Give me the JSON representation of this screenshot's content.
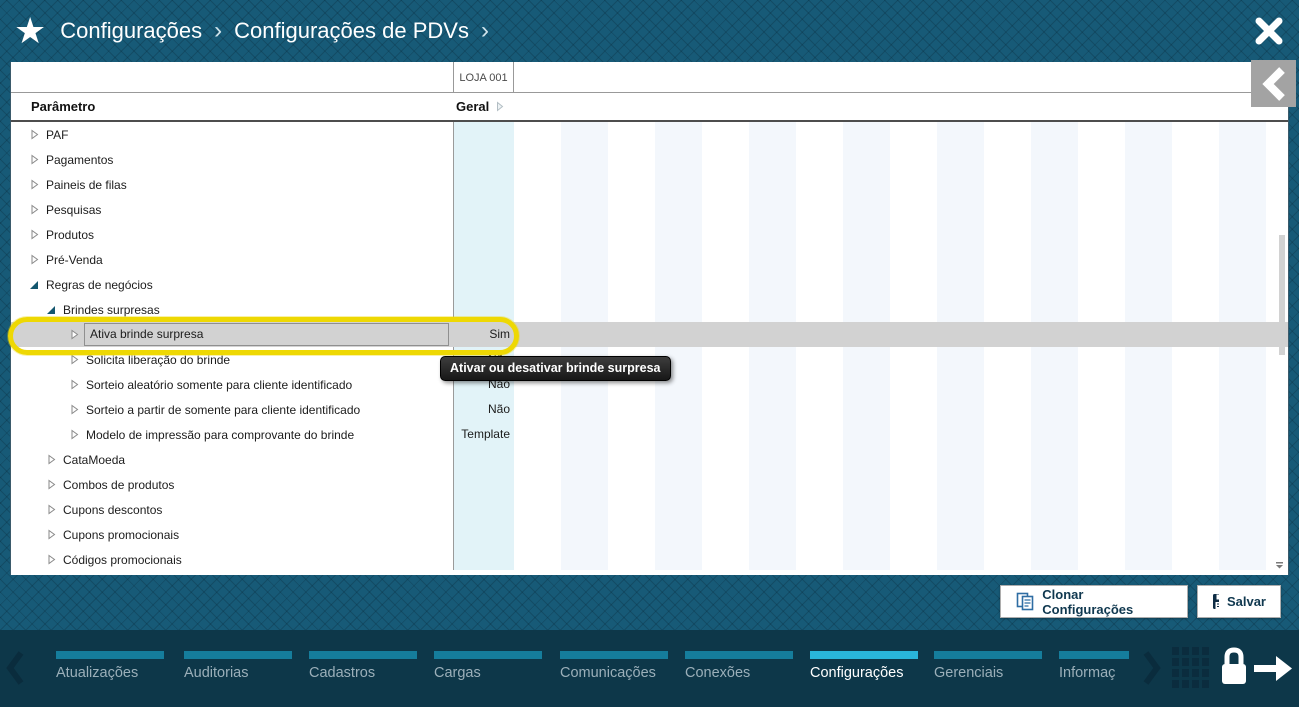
{
  "header": {
    "star_icon": "star",
    "breadcrumb": [
      {
        "label": "Configurações"
      },
      {
        "label": "Configurações de PDVs"
      }
    ],
    "separator": "›",
    "close_icon": "close"
  },
  "table": {
    "store_header": "LOJA 001",
    "param_header": "Parâmetro",
    "group_header": "Geral",
    "tree": [
      {
        "label": "PAF",
        "level": 0,
        "state": "collapsed"
      },
      {
        "label": "Pagamentos",
        "level": 0,
        "state": "collapsed"
      },
      {
        "label": "Paineis de filas",
        "level": 0,
        "state": "collapsed"
      },
      {
        "label": "Pesquisas",
        "level": 0,
        "state": "collapsed"
      },
      {
        "label": "Produtos",
        "level": 0,
        "state": "collapsed"
      },
      {
        "label": "Pré-Venda",
        "level": 0,
        "state": "collapsed"
      },
      {
        "label": "Regras de negócios",
        "level": 0,
        "state": "expanded"
      },
      {
        "label": "Brindes surpresas",
        "level": 1,
        "state": "expanded"
      },
      {
        "label": "Ativa brinde surpresa",
        "level": 2,
        "state": "collapsed",
        "selected": true,
        "value": "Sim"
      },
      {
        "label": "Solicita liberação do brinde",
        "level": 2,
        "state": "collapsed",
        "value": "Não"
      },
      {
        "label": "Sorteio aleatório somente para cliente identificado",
        "level": 2,
        "state": "collapsed",
        "value": "Não"
      },
      {
        "label": "Sorteio a partir de somente para cliente identificado",
        "level": 2,
        "state": "collapsed",
        "value": "Não"
      },
      {
        "label": "Modelo de impressão para comprovante do brinde",
        "level": 2,
        "state": "collapsed",
        "value": "Template"
      },
      {
        "label": "CataMoeda",
        "level": 1,
        "state": "collapsed"
      },
      {
        "label": "Combos de produtos",
        "level": 1,
        "state": "collapsed"
      },
      {
        "label": "Cupons descontos",
        "level": 1,
        "state": "collapsed"
      },
      {
        "label": "Cupons promocionais",
        "level": 1,
        "state": "collapsed"
      },
      {
        "label": "Códigos promocionais",
        "level": 1,
        "state": "collapsed"
      }
    ]
  },
  "tooltip": "Ativar ou desativar brinde surpresa",
  "actions": {
    "clone_label": "Clonar Configurações",
    "save_label": "Salvar"
  },
  "nav": {
    "items": [
      {
        "label": "Atualizações"
      },
      {
        "label": "Auditorias"
      },
      {
        "label": "Cadastros"
      },
      {
        "label": "Cargas"
      },
      {
        "label": "Comunicações"
      },
      {
        "label": "Conexões"
      },
      {
        "label": "Configurações",
        "active": true
      },
      {
        "label": "Gerenciais"
      },
      {
        "label": "Informaç"
      }
    ]
  },
  "colors": {
    "header_teal": "#175a77",
    "nav_bg": "#0d3749",
    "accent_active": "#29b5da",
    "highlight_yellow": "#eed803",
    "selected_row": "#d2d2d2",
    "value_column": "#e2f3f8",
    "stripe": "#f3f7fc"
  }
}
